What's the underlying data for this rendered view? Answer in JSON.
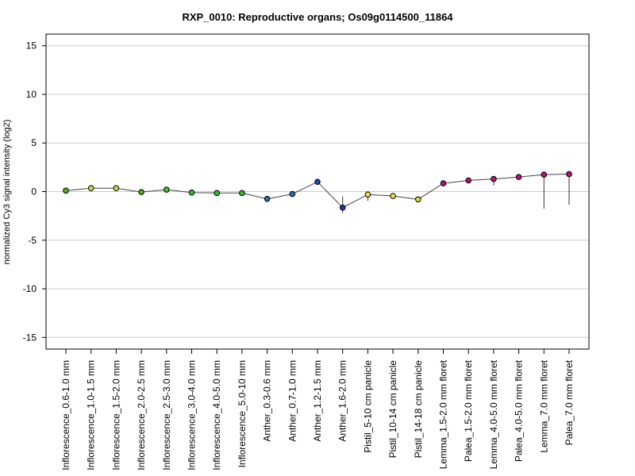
{
  "chart_data": {
    "type": "line",
    "title": "RXP_0010: Reproductive organs; Os09g0114500_11864",
    "xlabel": "",
    "ylabel": "normalized Cy3 signal intensity (log2)",
    "ylim": [
      -16.2,
      16.2
    ],
    "yticks": [
      -15,
      -10,
      -5,
      0,
      5,
      10,
      15
    ],
    "grid": "horizontal",
    "categories": [
      "Inflorescence_0.6-1.0 mm",
      "Inflorescence_1.0-1.5 mm",
      "Inflorescence_1.5-2.0 mm",
      "Inflorescence_2.0-2.5 mm",
      "Inflorescence_2.5-3.0 mm",
      "Inflorescence_3.0-4.0 mm",
      "Inflorescence_4.0-5.0 mm",
      "Inflorescence_5.0-10 mm",
      "Anther_0.3-0.6 mm",
      "Anther_0.7-1.0 mm",
      "Anther_1.2-1.5 mm",
      "Anther_1.6-2.0 mm",
      "Pistil_5-10 cm panicle",
      "Pistil_10-14 cm panicle",
      "Pistil_14-18 cm panicle",
      "Lemma_1.5-2.0 mm floret",
      "Palea_1.5-2.0 mm floret",
      "Lemma_4.0-5.0 mm floret",
      "Palea_4.0-5.0 mm floret",
      "Lemma_7.0 mm floret",
      "Palea_7.0 mm floret"
    ],
    "values": [
      0.1,
      0.35,
      0.35,
      -0.05,
      0.2,
      -0.1,
      -0.15,
      -0.15,
      -0.75,
      -0.25,
      1.0,
      -1.65,
      -0.3,
      -0.45,
      -0.8,
      0.85,
      1.15,
      1.3,
      1.5,
      1.75,
      1.8
    ],
    "error_low": [
      0.05,
      0.3,
      0.3,
      -0.1,
      0.15,
      -0.15,
      -0.2,
      -0.2,
      -0.8,
      -0.3,
      0.95,
      -2.2,
      -0.95,
      -0.55,
      -0.85,
      0.55,
      1.0,
      0.65,
      1.3,
      -1.75,
      -1.35
    ],
    "error_high": [
      0.15,
      0.4,
      0.4,
      0.0,
      0.25,
      -0.05,
      -0.1,
      -0.1,
      -0.7,
      -0.2,
      1.05,
      -0.5,
      0.0,
      -0.35,
      -0.75,
      1.1,
      1.3,
      1.45,
      1.7,
      1.95,
      1.9
    ],
    "point_colors": [
      "#55aa22",
      "#bbdd55",
      "#bbdd55",
      "#55aa22",
      "#55bb33",
      "#33bb33",
      "#33bb33",
      "#33bb33",
      "#3366bb",
      "#3366bb",
      "#2244aa",
      "#2233aa",
      "#eedd44",
      "#eedd44",
      "#dddd33",
      "#bb1177",
      "#bb1177",
      "#bb1177",
      "#bb1177",
      "#bb1177",
      "#bb1177"
    ],
    "line_color": "#444444",
    "grid_color": "#cccccc"
  }
}
